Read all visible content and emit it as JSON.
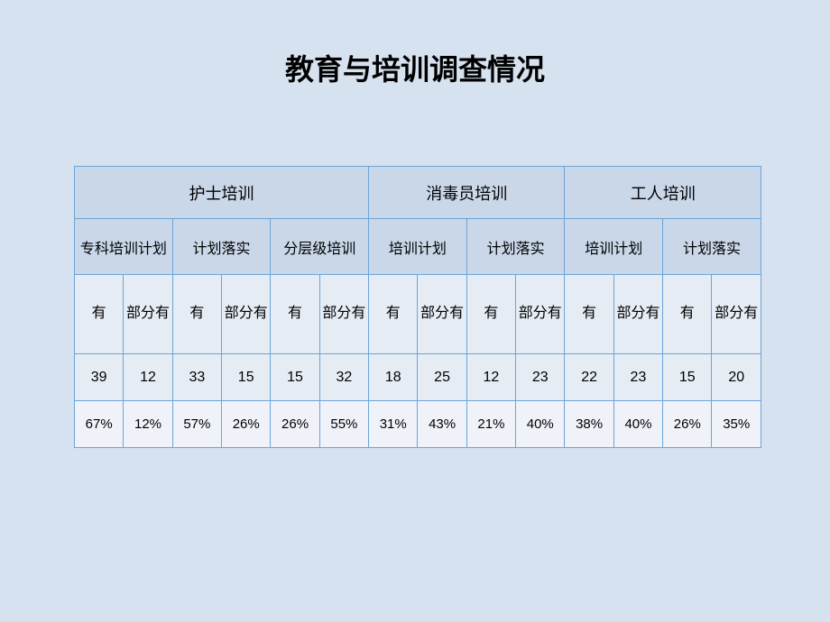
{
  "title": "教育与培训调查情况",
  "table": {
    "type": "table",
    "border_color": "#6ca4d8",
    "header_bg": "#c9d7e9",
    "row1_bg": "#e6ecf4",
    "row2_bg": "#eff2f8",
    "background_color": "#d7e2f0",
    "title_fontsize": 32,
    "groups": [
      {
        "label": "护士培训",
        "span": 6
      },
      {
        "label": "消毒员培训",
        "span": 4
      },
      {
        "label": "工人培训",
        "span": 4
      }
    ],
    "subgroups": [
      {
        "label": "专科培训计划"
      },
      {
        "label": "计划落实"
      },
      {
        "label": "分层级培训"
      },
      {
        "label": "培训计划"
      },
      {
        "label": "计划落实"
      },
      {
        "label": "培训计划"
      },
      {
        "label": "计划落实"
      }
    ],
    "leaf_headers": [
      "有",
      "部分有",
      "有",
      "部分有",
      "有",
      "部分有",
      "有",
      "部分有",
      "有",
      "部分有",
      "有",
      "部分有",
      "有",
      "部分有"
    ],
    "counts": [
      "39",
      "12",
      "33",
      "15",
      "15",
      "32",
      "18",
      "25",
      "12",
      "23",
      "22",
      "23",
      "15",
      "20"
    ],
    "percents": [
      "67%",
      "12%",
      "57%",
      "26%",
      "26%",
      "55%",
      "31%",
      "43%",
      "21%",
      "40%",
      "38%",
      "40%",
      "26%",
      "35%"
    ]
  }
}
